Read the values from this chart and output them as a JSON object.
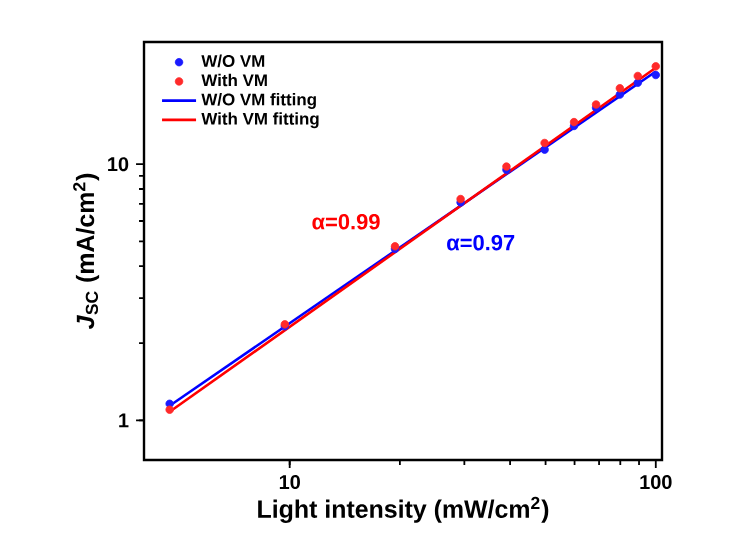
{
  "chart_data": {
    "type": "scatter",
    "xlabel": "Light intensity (mW/cm$^{2}$)",
    "ylabel": "*J*$_{SC}$ (mA/cm$^{2}$)",
    "log": "xy",
    "xlim": [
      4,
      104
    ],
    "ylim": [
      0.7,
      30
    ],
    "xticks": [
      10,
      100
    ],
    "yticks": [
      1,
      10
    ],
    "legend": "top left",
    "grid": false,
    "series": [
      {
        "name": "W/O VM",
        "marker": "circle",
        "color": "#1a1aff",
        "x": [
          4.7,
          9.7,
          19.4,
          29.3,
          39.1,
          49.7,
          59.8,
          68.7,
          79.8,
          89.3,
          100
        ],
        "values": [
          1.16,
          2.33,
          4.67,
          7.09,
          9.51,
          11.4,
          14.1,
          16.6,
          18.7,
          20.8,
          22.3
        ]
      },
      {
        "name": "With VM",
        "marker": "circle",
        "color": "#ff2a2a",
        "x": [
          4.7,
          9.7,
          19.4,
          29.3,
          39.1,
          49.7,
          59.8,
          68.7,
          79.8,
          89.3,
          100
        ],
        "values": [
          1.1,
          2.37,
          4.78,
          7.31,
          9.79,
          12.1,
          14.6,
          17.1,
          19.8,
          22.1,
          24.1
        ]
      },
      {
        "name": "W/O VM fitting",
        "type": "line",
        "marker": "none",
        "color": "#0000ff",
        "x": [
          4.7,
          100
        ],
        "values": [
          1.14,
          23.0
        ]
      },
      {
        "name": "With VM fitting",
        "type": "line",
        "marker": "none",
        "color": "#ff0000",
        "x": [
          4.7,
          100
        ],
        "values": [
          1.08,
          23.8
        ]
      }
    ],
    "annotations": [
      "α=0.97",
      "α=0.99"
    ]
  }
}
